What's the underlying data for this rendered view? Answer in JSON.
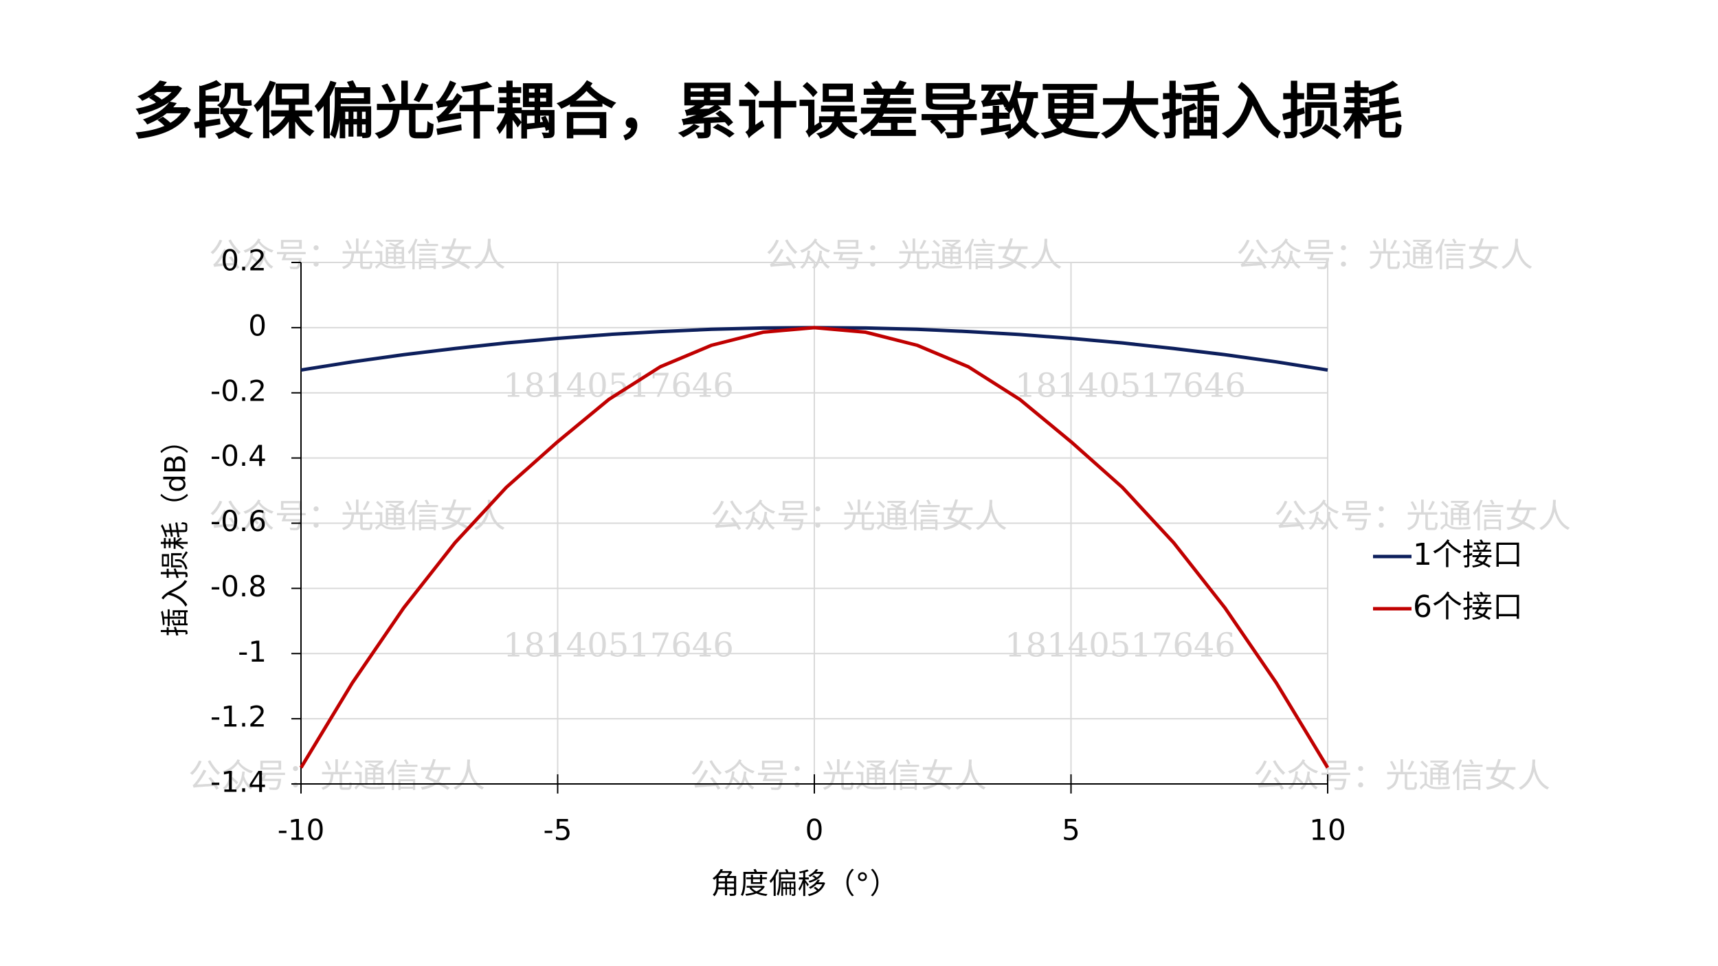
{
  "chart_data": {
    "type": "line",
    "title": "多段保偏光纤耦合，累计误差导致更大插入损耗",
    "x_label": "角度偏移（°）",
    "y_label": "插入损耗（dB）",
    "x": [
      -10,
      -9,
      -8,
      -7,
      -6,
      -5,
      -4,
      -3,
      -2,
      -1,
      0,
      1,
      2,
      3,
      4,
      5,
      6,
      7,
      8,
      9,
      10
    ],
    "series": [
      {
        "name": "1个接口",
        "color": "#0d1f5c",
        "values": [
          -0.13,
          -0.105,
          -0.083,
          -0.064,
          -0.047,
          -0.033,
          -0.021,
          -0.012,
          -0.005,
          -0.001,
          0,
          -0.001,
          -0.005,
          -0.012,
          -0.021,
          -0.033,
          -0.047,
          -0.064,
          -0.083,
          -0.105,
          -0.13
        ]
      },
      {
        "name": "6个接口",
        "color": "#c00000",
        "values": [
          -1.35,
          -1.09,
          -0.86,
          -0.66,
          -0.49,
          -0.35,
          -0.22,
          -0.12,
          -0.054,
          -0.014,
          0,
          -0.014,
          -0.054,
          -0.12,
          -0.22,
          -0.35,
          -0.49,
          -0.66,
          -0.86,
          -1.09,
          -1.35
        ]
      }
    ],
    "xlim": [
      -10,
      10
    ],
    "xticks": [
      -10,
      -5,
      0,
      5,
      10
    ],
    "ylim": [
      -1.4,
      0.2
    ],
    "yticks": [
      0.2,
      0,
      -0.2,
      -0.4,
      -0.6,
      -0.8,
      -1,
      -1.2,
      -1.4
    ],
    "grid": true,
    "legend": "right",
    "watermarks": [
      "公众号：光通信女人",
      "18140517646"
    ]
  }
}
